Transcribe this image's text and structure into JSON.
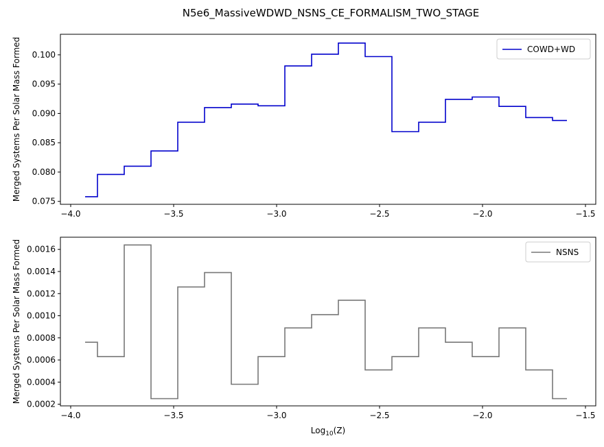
{
  "figure": {
    "title": "N5e6_MassiveWDWD_NSNS_CE_FORMALISM_TWO_STAGE"
  },
  "chart_data": [
    {
      "type": "line",
      "step": "post",
      "x": [
        -3.93,
        -3.87,
        -3.74,
        -3.61,
        -3.48,
        -3.35,
        -3.22,
        -3.09,
        -2.96,
        -2.83,
        -2.7,
        -2.57,
        -2.44,
        -2.31,
        -2.18,
        -2.05,
        -1.92,
        -1.79,
        -1.66,
        -1.59
      ],
      "series": [
        {
          "name": "COWD+WD",
          "color": "#0000cc",
          "values": [
            0.0758,
            0.0796,
            0.081,
            0.0836,
            0.0885,
            0.091,
            0.0916,
            0.0913,
            0.0981,
            0.1001,
            0.102,
            0.0997,
            0.0869,
            0.0885,
            0.0924,
            0.0928,
            0.0912,
            0.0893,
            0.0888,
            0.0888
          ]
        }
      ],
      "xlabel": "",
      "ylabel": "Merged Systems Per Solar Mass Formed",
      "xlim": [
        -4.05,
        -1.45
      ],
      "ylim": [
        0.0745,
        0.1035
      ],
      "xticks": [
        -4.0,
        -3.5,
        -3.0,
        -2.5,
        -2.0,
        -1.5
      ],
      "xtick_labels": [
        "−4.0",
        "−3.5",
        "−3.0",
        "−2.5",
        "−2.0",
        "−1.5"
      ],
      "yticks": [
        0.075,
        0.08,
        0.085,
        0.09,
        0.095,
        0.1
      ],
      "ytick_labels": [
        "0.075",
        "0.080",
        "0.085",
        "0.090",
        "0.095",
        "0.100"
      ],
      "legend": "top-right",
      "grid": false
    },
    {
      "type": "line",
      "step": "post",
      "x": [
        -3.93,
        -3.87,
        -3.74,
        -3.61,
        -3.48,
        -3.35,
        -3.22,
        -3.09,
        -2.96,
        -2.83,
        -2.7,
        -2.57,
        -2.44,
        -2.31,
        -2.18,
        -2.05,
        -1.92,
        -1.79,
        -1.66,
        -1.59
      ],
      "series": [
        {
          "name": "NSNS",
          "color": "#777777",
          "values": [
            0.00076,
            0.00063,
            0.00164,
            0.00025,
            0.00126,
            0.00139,
            0.00038,
            0.00063,
            0.00089,
            0.00101,
            0.00114,
            0.00051,
            0.00063,
            0.00089,
            0.00076,
            0.00063,
            0.00089,
            0.00051,
            0.00025,
            0.00025
          ]
        }
      ],
      "xlabel": "Log",
      "xlabel_sub": "10",
      "xlabel_suffix": "(Z)",
      "ylabel": "Merged Systems Per Solar Mass Formed",
      "xlim": [
        -4.05,
        -1.45
      ],
      "ylim": [
        0.000185,
        0.00171
      ],
      "xticks": [
        -4.0,
        -3.5,
        -3.0,
        -2.5,
        -2.0,
        -1.5
      ],
      "xtick_labels": [
        "−4.0",
        "−3.5",
        "−3.0",
        "−2.5",
        "−2.0",
        "−1.5"
      ],
      "yticks": [
        0.0002,
        0.0004,
        0.0006,
        0.0008,
        0.001,
        0.0012,
        0.0014,
        0.0016
      ],
      "ytick_labels": [
        "0.0002",
        "0.0004",
        "0.0006",
        "0.0008",
        "0.0010",
        "0.0012",
        "0.0014",
        "0.0016"
      ],
      "legend": "top-right",
      "grid": false
    }
  ]
}
